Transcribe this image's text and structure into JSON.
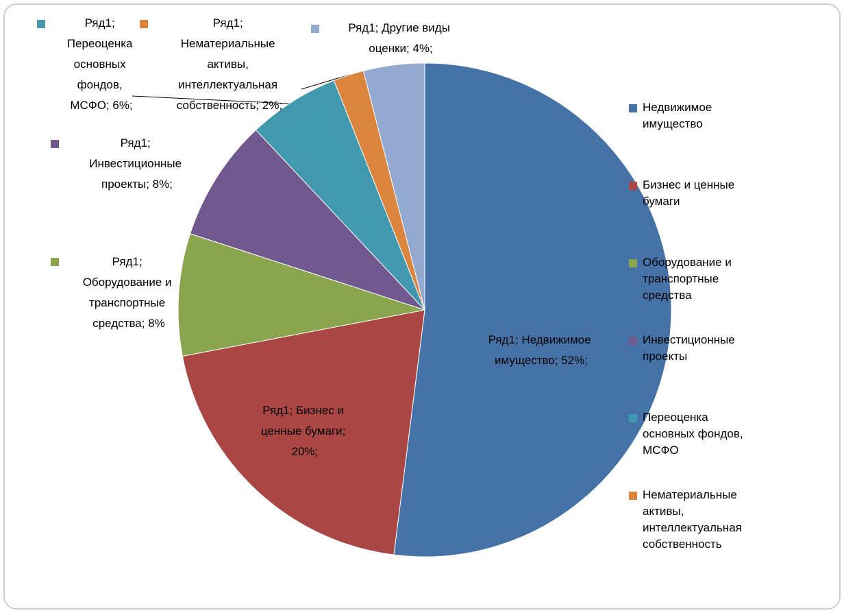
{
  "chart_data": {
    "type": "pie",
    "series_name": "Ряд1",
    "categories": [
      "Недвижимое имущество",
      "Бизнес и ценные бумаги",
      "Оборудование и транспортные средства",
      "Инвестиционные проекты",
      "Переоценка основных фондов, МСФО",
      "Нематериальные активы, интеллектуальная собственность",
      "Другие виды оценки"
    ],
    "values": [
      52,
      20,
      8,
      8,
      6,
      2,
      4
    ],
    "value_labels": [
      "Ряд1; Недвижимое имущество; 52%;",
      "Ряд1; Бизнес и ценные бумаги; 20%;",
      "Ряд1; Оборудование и транспортные средства; 8%",
      "Ряд1; Инвестиционные проекты; 8%;",
      "Ряд1; Переоценка основных фондов, МСФО; 6%;",
      "Ряд1; Нематериальные активы, интеллектуальная собственность; 2%;",
      "Ряд1; Другие виды оценки; 4%;"
    ],
    "colors": [
      "#4572a7",
      "#aa4643",
      "#89a54e",
      "#71588f",
      "#4198af",
      "#db843d",
      "#93a9cf"
    ],
    "legend": "right"
  }
}
